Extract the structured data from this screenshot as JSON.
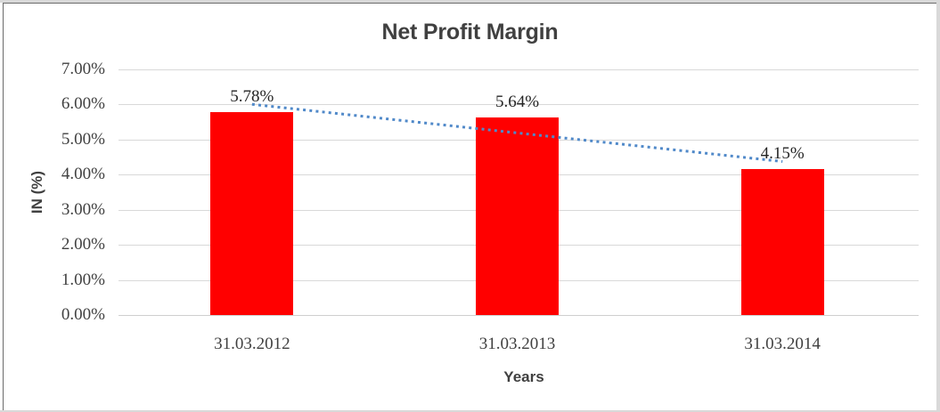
{
  "chart_data": {
    "type": "bar",
    "title": "Net Profit Margin",
    "categories": [
      "31.03.2012",
      "31.03.2013",
      "31.03.2014"
    ],
    "values": [
      5.78,
      5.64,
      4.15
    ],
    "data_labels": [
      "5.78%",
      "5.64%",
      "4.15%"
    ],
    "xlabel": "Years",
    "ylabel": "IN (%)",
    "ylim": [
      0,
      7
    ],
    "ytick_step": 1,
    "ytick_labels": [
      "0.00%",
      "1.00%",
      "2.00%",
      "3.00%",
      "4.00%",
      "5.00%",
      "6.00%",
      "7.00%"
    ],
    "grid": true,
    "legend_position": "none",
    "bar_color": "#ff0000",
    "trendline": {
      "type": "linear",
      "style": "dotted",
      "color": "#5089c9"
    }
  },
  "colors": {
    "title_text": "#404040",
    "axis_tick_text": "#404040",
    "data_label_text": "#262626",
    "x_axis_title_text": "#404040",
    "y_axis_title_text": "#404040",
    "gridline": "#d9d9d9",
    "zero_axis_line": "#cfcfcf",
    "bar": "#ff0000",
    "trendline": "#5089c9",
    "frame_edge": "#d9d9d9",
    "frame_border": "#6b6b6b",
    "background": "#ffffff"
  }
}
